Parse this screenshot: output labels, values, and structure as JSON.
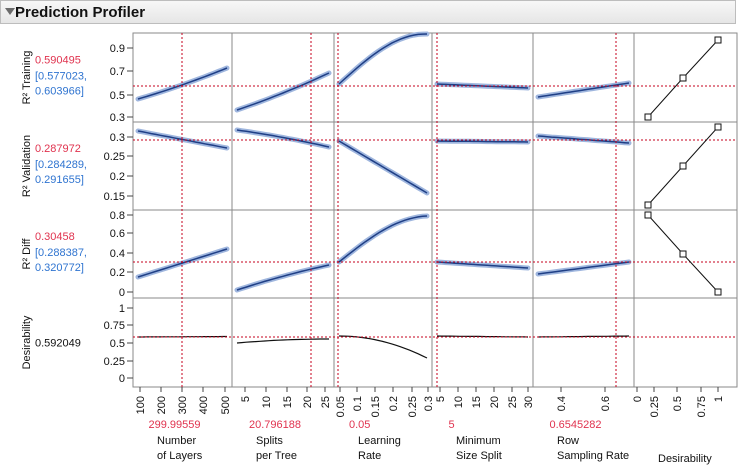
{
  "title": "Prediction Profiler",
  "colors": {
    "current_value": "#e0334f",
    "interval": "#2f74d0",
    "curve": "#1f3f86",
    "band": "#9fb6de",
    "desirability_curve": "#111111",
    "crosshair": "#c4001c",
    "grid": "#7a7a7a"
  },
  "factors": [
    {
      "label_lines": [
        "Number",
        "of Layers"
      ],
      "current": "299.99559",
      "ticks": [
        "100",
        "200",
        "300",
        "400",
        "500"
      ],
      "ticks_rotated": true
    },
    {
      "label_lines": [
        "Splits",
        "per Tree"
      ],
      "current": "20.796188",
      "ticks": [
        "5",
        "10",
        "15",
        "20",
        "25"
      ],
      "ticks_rotated": true
    },
    {
      "label_lines": [
        "Learning",
        "Rate"
      ],
      "current": "0.05",
      "ticks": [
        "0.05",
        "0.1",
        "0.15",
        "0.2",
        "0.25",
        "0.3"
      ],
      "ticks_rotated": true
    },
    {
      "label_lines": [
        "Minimum",
        "Size Split"
      ],
      "current": "5",
      "ticks": [
        "5",
        "10",
        "15",
        "20",
        "25",
        "30"
      ],
      "ticks_rotated": true
    },
    {
      "label_lines": [
        "Row",
        "Sampling Rate"
      ],
      "current": "0.6545282",
      "ticks": [
        "0.4",
        "0.6"
      ],
      "ticks_rotated": true
    },
    {
      "label_lines": [
        "Desirability"
      ],
      "current": "",
      "ticks": [
        "0",
        "0.25",
        "0.5",
        "0.75",
        "1"
      ],
      "ticks_rotated": true
    }
  ],
  "responses": [
    {
      "name": "R² Training",
      "current": "0.590495",
      "interval": [
        "[0.577023,",
        "0.603966]"
      ],
      "yticks": [
        "0.9",
        "0.7",
        "0.5",
        "0.3"
      ]
    },
    {
      "name": "R² Validation",
      "current": "0.287972",
      "interval": [
        "[0.284289,",
        "0.291655]"
      ],
      "yticks": [
        "0.3",
        "0.25",
        "0.2",
        "0.15"
      ]
    },
    {
      "name": "R² Diff",
      "current": "0.30458",
      "interval": [
        "[0.288387,",
        "0.320772]"
      ],
      "yticks": [
        "0.8",
        "0.6",
        "0.4",
        "0.2",
        "0"
      ]
    },
    {
      "name": "Desirability",
      "current": "0.592049",
      "interval": [],
      "yticks": [
        "1",
        "0.75",
        "0.5",
        "0.25",
        "0"
      ]
    }
  ]
}
